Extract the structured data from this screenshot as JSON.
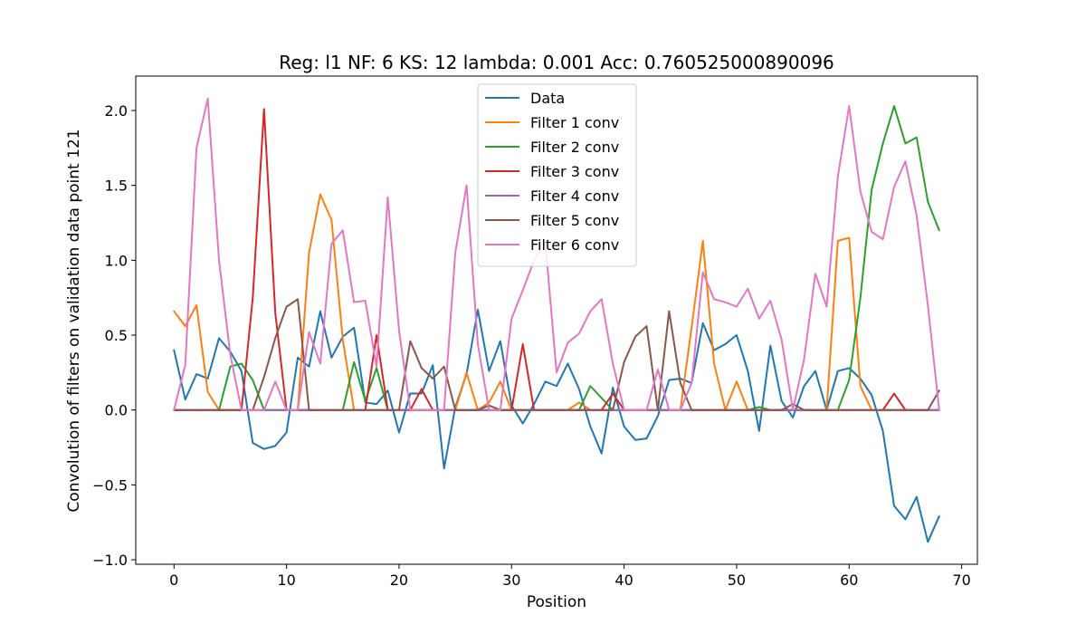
{
  "chart_data": {
    "type": "line",
    "title": "Reg: l1  NF: 6  KS: 12  lambda: 0.001 Acc: 0.760525000890096",
    "xlabel": "Position",
    "ylabel": "Convolution of filters on validation data point 121",
    "xlim": [
      -3.4,
      71.4
    ],
    "ylim": [
      -1.03,
      2.23
    ],
    "xticks": [
      0,
      10,
      20,
      30,
      40,
      50,
      60,
      70
    ],
    "yticks": [
      -1.0,
      -0.5,
      0.0,
      0.5,
      1.0,
      1.5,
      2.0
    ],
    "ytick_labels": [
      "−1.0",
      "−0.5",
      "0.0",
      "0.5",
      "1.0",
      "1.5",
      "2.0"
    ],
    "grid": false,
    "legend_position": "top-center",
    "x": [
      0,
      1,
      2,
      3,
      4,
      5,
      6,
      7,
      8,
      9,
      10,
      11,
      12,
      13,
      14,
      15,
      16,
      17,
      18,
      19,
      20,
      21,
      22,
      23,
      24,
      25,
      26,
      27,
      28,
      29,
      30,
      31,
      32,
      33,
      34,
      35,
      36,
      37,
      38,
      39,
      40,
      41,
      42,
      43,
      44,
      45,
      46,
      47,
      48,
      49,
      50,
      51,
      52,
      53,
      54,
      55,
      56,
      57,
      58,
      59,
      60,
      61,
      62,
      63,
      64,
      65,
      66,
      67,
      68
    ],
    "series": [
      {
        "name": "Data",
        "color": "#1f77b4",
        "values": [
          0.4,
          0.07,
          0.24,
          0.21,
          0.48,
          0.39,
          0.26,
          -0.22,
          -0.26,
          -0.24,
          -0.15,
          0.35,
          0.29,
          0.66,
          0.35,
          0.49,
          0.55,
          0.05,
          0.04,
          0.13,
          -0.15,
          0.11,
          0.11,
          0.3,
          -0.39,
          0.02,
          0.24,
          0.67,
          0.26,
          0.46,
          0.03,
          -0.09,
          0.04,
          0.19,
          0.16,
          0.31,
          0.14,
          -0.11,
          -0.29,
          0.15,
          -0.11,
          -0.2,
          -0.19,
          -0.04,
          0.2,
          0.21,
          0.18,
          0.58,
          0.4,
          0.44,
          0.5,
          0.26,
          -0.14,
          0.43,
          0.06,
          -0.05,
          0.16,
          0.26,
          0.0,
          0.26,
          0.28,
          0.21,
          0.1,
          -0.14,
          -0.64,
          -0.73,
          -0.58,
          -0.88,
          -0.71
        ]
      },
      {
        "name": "Filter 1 conv",
        "color": "#ff7f0e",
        "values": [
          0.66,
          0.56,
          0.7,
          0.12,
          0.0,
          0.0,
          0.0,
          0.0,
          0.0,
          0.0,
          0.0,
          0.0,
          1.05,
          1.44,
          1.27,
          0.47,
          0.0,
          0.0,
          0.0,
          0.0,
          0.0,
          0.0,
          0.0,
          0.0,
          0.0,
          0.0,
          0.25,
          0.0,
          0.05,
          0.19,
          0.0,
          0.0,
          0.0,
          0.0,
          0.0,
          0.0,
          0.05,
          0.0,
          0.0,
          0.0,
          0.0,
          0.0,
          0.0,
          0.0,
          0.0,
          0.0,
          0.55,
          1.13,
          0.31,
          0.0,
          0.19,
          0.0,
          0.0,
          0.0,
          0.0,
          0.0,
          0.0,
          0.0,
          0.0,
          1.13,
          1.15,
          0.16,
          0.0,
          0.0,
          0.0,
          0.0,
          0.0,
          0.0,
          0.0
        ]
      },
      {
        "name": "Filter 2 conv",
        "color": "#2ca02c",
        "values": [
          0.0,
          0.0,
          0.0,
          0.0,
          0.0,
          0.29,
          0.31,
          0.2,
          0.0,
          0.0,
          0.0,
          0.0,
          0.0,
          0.0,
          0.0,
          0.0,
          0.32,
          0.06,
          0.28,
          0.0,
          0.0,
          0.0,
          0.0,
          0.0,
          0.0,
          0.0,
          0.0,
          0.0,
          0.0,
          0.0,
          0.0,
          0.0,
          0.0,
          0.0,
          0.0,
          0.0,
          0.0,
          0.16,
          0.08,
          0.0,
          0.0,
          0.0,
          0.0,
          0.0,
          0.0,
          0.0,
          0.0,
          0.0,
          0.0,
          0.0,
          0.0,
          0.0,
          0.02,
          0.0,
          0.0,
          0.0,
          0.0,
          0.0,
          0.0,
          0.0,
          0.2,
          0.75,
          1.47,
          1.78,
          2.03,
          1.78,
          1.82,
          1.39,
          1.2
        ]
      },
      {
        "name": "Filter 3 conv",
        "color": "#d62728",
        "values": [
          0.0,
          0.0,
          0.0,
          0.0,
          0.0,
          0.0,
          0.0,
          0.75,
          2.01,
          0.65,
          0.0,
          0.0,
          0.0,
          0.0,
          0.0,
          0.0,
          0.0,
          0.0,
          0.5,
          0.0,
          0.0,
          0.0,
          0.14,
          0.0,
          0.0,
          0.0,
          0.0,
          0.0,
          0.0,
          0.0,
          0.0,
          0.44,
          0.0,
          0.0,
          0.0,
          0.0,
          0.0,
          0.0,
          0.0,
          0.11,
          0.0,
          0.0,
          0.0,
          0.0,
          0.0,
          0.0,
          0.0,
          0.0,
          0.0,
          0.0,
          0.0,
          0.0,
          0.0,
          0.0,
          0.0,
          0.0,
          0.0,
          0.0,
          0.0,
          0.0,
          0.0,
          0.0,
          0.0,
          0.0,
          0.11,
          0.0,
          0.0,
          0.0,
          0.0
        ]
      },
      {
        "name": "Filter 4 conv",
        "color": "#9467bd",
        "values": [
          0,
          0,
          0,
          0,
          0,
          0,
          0,
          0,
          0,
          0,
          0,
          0,
          0,
          0,
          0,
          0,
          0,
          0,
          0,
          0,
          0,
          0,
          0,
          0,
          0,
          0,
          0,
          0,
          0,
          0,
          0,
          0,
          0,
          0,
          0,
          0,
          0,
          0,
          0,
          0,
          0,
          0,
          0,
          0,
          0,
          0,
          0,
          0,
          0,
          0,
          0,
          0,
          0,
          0,
          0,
          0,
          0,
          0,
          0,
          0,
          0,
          0,
          0,
          0,
          0,
          0,
          0,
          0,
          0
        ]
      },
      {
        "name": "Filter 5 conv",
        "color": "#8c564b",
        "values": [
          0.0,
          0.0,
          0.0,
          0.0,
          0.0,
          0.0,
          0.0,
          0.0,
          0.22,
          0.48,
          0.69,
          0.74,
          0.0,
          0.0,
          0.0,
          0.0,
          0.0,
          0.0,
          0.0,
          0.0,
          0.0,
          0.46,
          0.28,
          0.21,
          0.29,
          0.0,
          0.0,
          0.0,
          0.03,
          0.0,
          0.0,
          0.0,
          0.0,
          0.0,
          0.0,
          0.0,
          0.0,
          0.0,
          0.0,
          0.0,
          0.32,
          0.49,
          0.56,
          0.0,
          0.66,
          0.18,
          0.0,
          0.0,
          0.0,
          0.0,
          0.0,
          0.0,
          0.0,
          0.0,
          0.0,
          0.04,
          0.0,
          0.0,
          0.0,
          0.0,
          0.0,
          0.0,
          0.0,
          0.0,
          0.0,
          0.0,
          0.0,
          0.0,
          0.13
        ]
      },
      {
        "name": "Filter 6 conv",
        "color": "#e377c2",
        "values": [
          0.0,
          0.3,
          1.75,
          2.08,
          1.0,
          0.37,
          0.0,
          0.0,
          0.0,
          0.19,
          0.0,
          0.0,
          0.52,
          0.31,
          1.11,
          1.2,
          0.72,
          0.73,
          0.29,
          1.42,
          0.53,
          0.0,
          0.0,
          0.0,
          0.0,
          1.05,
          1.5,
          0.44,
          0.0,
          0.0,
          0.61,
          0.8,
          1.0,
          1.12,
          0.25,
          0.45,
          0.51,
          0.66,
          0.74,
          0.31,
          0.0,
          0.0,
          0.0,
          0.27,
          0.0,
          0.0,
          0.18,
          0.92,
          0.74,
          0.72,
          0.69,
          0.81,
          0.61,
          0.73,
          0.47,
          0.0,
          0.34,
          0.91,
          0.69,
          1.56,
          2.03,
          1.46,
          1.19,
          1.14,
          1.49,
          1.66,
          1.3,
          0.7,
          0.0
        ]
      }
    ]
  }
}
